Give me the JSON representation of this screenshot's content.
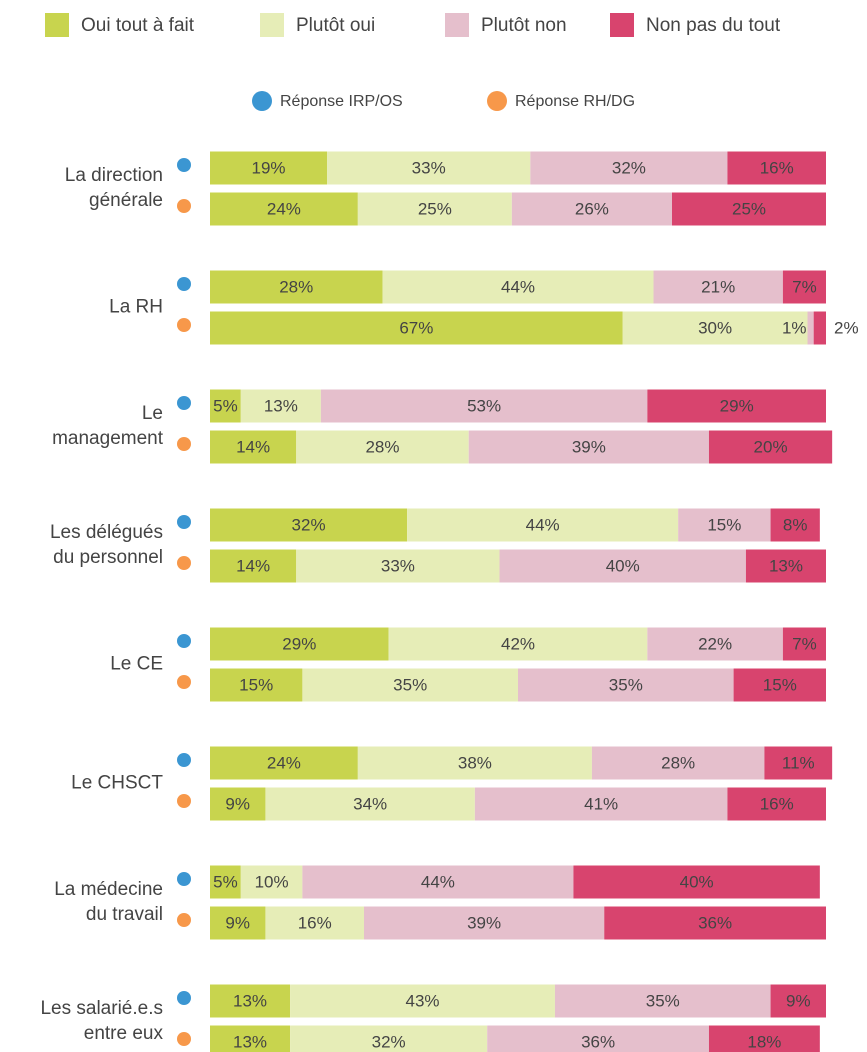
{
  "chart_data": {
    "type": "bar",
    "orientation": "horizontal",
    "stacked": true,
    "categories": [
      [
        "La direction",
        "générale"
      ],
      [
        "La RH"
      ],
      [
        "Le",
        "management"
      ],
      [
        "Les délégués",
        "du personnel"
      ],
      [
        "Le CE"
      ],
      [
        "Le CHSCT"
      ],
      [
        "La médecine",
        "du travail"
      ],
      [
        "Les salarié.e.s",
        "entre eux"
      ]
    ],
    "respondents": [
      {
        "name": "Réponse IRP/OS",
        "color": "#3b96d2"
      },
      {
        "name": "Réponse RH/DG",
        "color": "#f7984a"
      }
    ],
    "xlim": [
      0,
      100
    ],
    "series": [
      {
        "name": "Oui tout à fait",
        "color": "#c8d44e",
        "text_color": "#555555",
        "values": [
          [
            19,
            24
          ],
          [
            28,
            67
          ],
          [
            5,
            14
          ],
          [
            32,
            14
          ],
          [
            29,
            15
          ],
          [
            24,
            9
          ],
          [
            5,
            9
          ],
          [
            13,
            13
          ]
        ],
        "value_labels": [
          [
            "19%",
            "24%"
          ],
          [
            "28%",
            "67%"
          ],
          [
            "5%",
            "14%"
          ],
          [
            "32%",
            "14%"
          ],
          [
            "29%",
            "15%"
          ],
          [
            "24%",
            "9%"
          ],
          [
            "5%",
            "9%"
          ],
          [
            "13%",
            "13%"
          ]
        ]
      },
      {
        "name": "Plutôt oui",
        "color": "#e6edb7",
        "text_color": "#555555",
        "values": [
          [
            33,
            25
          ],
          [
            44,
            30
          ],
          [
            13,
            28
          ],
          [
            44,
            33
          ],
          [
            42,
            35
          ],
          [
            38,
            34
          ],
          [
            10,
            16
          ],
          [
            43,
            32
          ]
        ],
        "value_labels": [
          [
            "33%",
            "25%"
          ],
          [
            "44%",
            "30%"
          ],
          [
            "13%",
            "28%"
          ],
          [
            "44%",
            "33%"
          ],
          [
            "42%",
            "35%"
          ],
          [
            "38%",
            "34%"
          ],
          [
            "10%",
            "16%"
          ],
          [
            "43%",
            "32%"
          ]
        ]
      },
      {
        "name": "Plutôt non",
        "color": "#e5bfcc",
        "text_color": "#555555",
        "values": [
          [
            32,
            26
          ],
          [
            21,
            1
          ],
          [
            53,
            39
          ],
          [
            15,
            40
          ],
          [
            22,
            35
          ],
          [
            28,
            41
          ],
          [
            44,
            39
          ],
          [
            35,
            36
          ]
        ],
        "value_labels": [
          [
            "32%",
            "26%"
          ],
          [
            "21%",
            "1%"
          ],
          [
            "53%",
            "39%"
          ],
          [
            "15%",
            "40%"
          ],
          [
            "22%",
            "35%"
          ],
          [
            "28%",
            "41%"
          ],
          [
            "44%",
            "39%"
          ],
          [
            "35%",
            "36%"
          ]
        ]
      },
      {
        "name": "Non pas du tout",
        "color": "#d8446e",
        "text_color": "#ffffff",
        "values": [
          [
            16,
            25
          ],
          [
            7,
            2
          ],
          [
            29,
            20
          ],
          [
            8,
            13
          ],
          [
            7,
            15
          ],
          [
            11,
            16
          ],
          [
            40,
            36
          ],
          [
            9,
            18
          ]
        ],
        "value_labels": [
          [
            "16%",
            "25%"
          ],
          [
            "7%",
            "2%"
          ],
          [
            "29%",
            "20%"
          ],
          [
            "8%",
            "13%"
          ],
          [
            "7%",
            "15%"
          ],
          [
            "11%",
            "16%"
          ],
          [
            "40%",
            "36%"
          ],
          [
            "9%",
            "18%"
          ]
        ]
      }
    ]
  }
}
